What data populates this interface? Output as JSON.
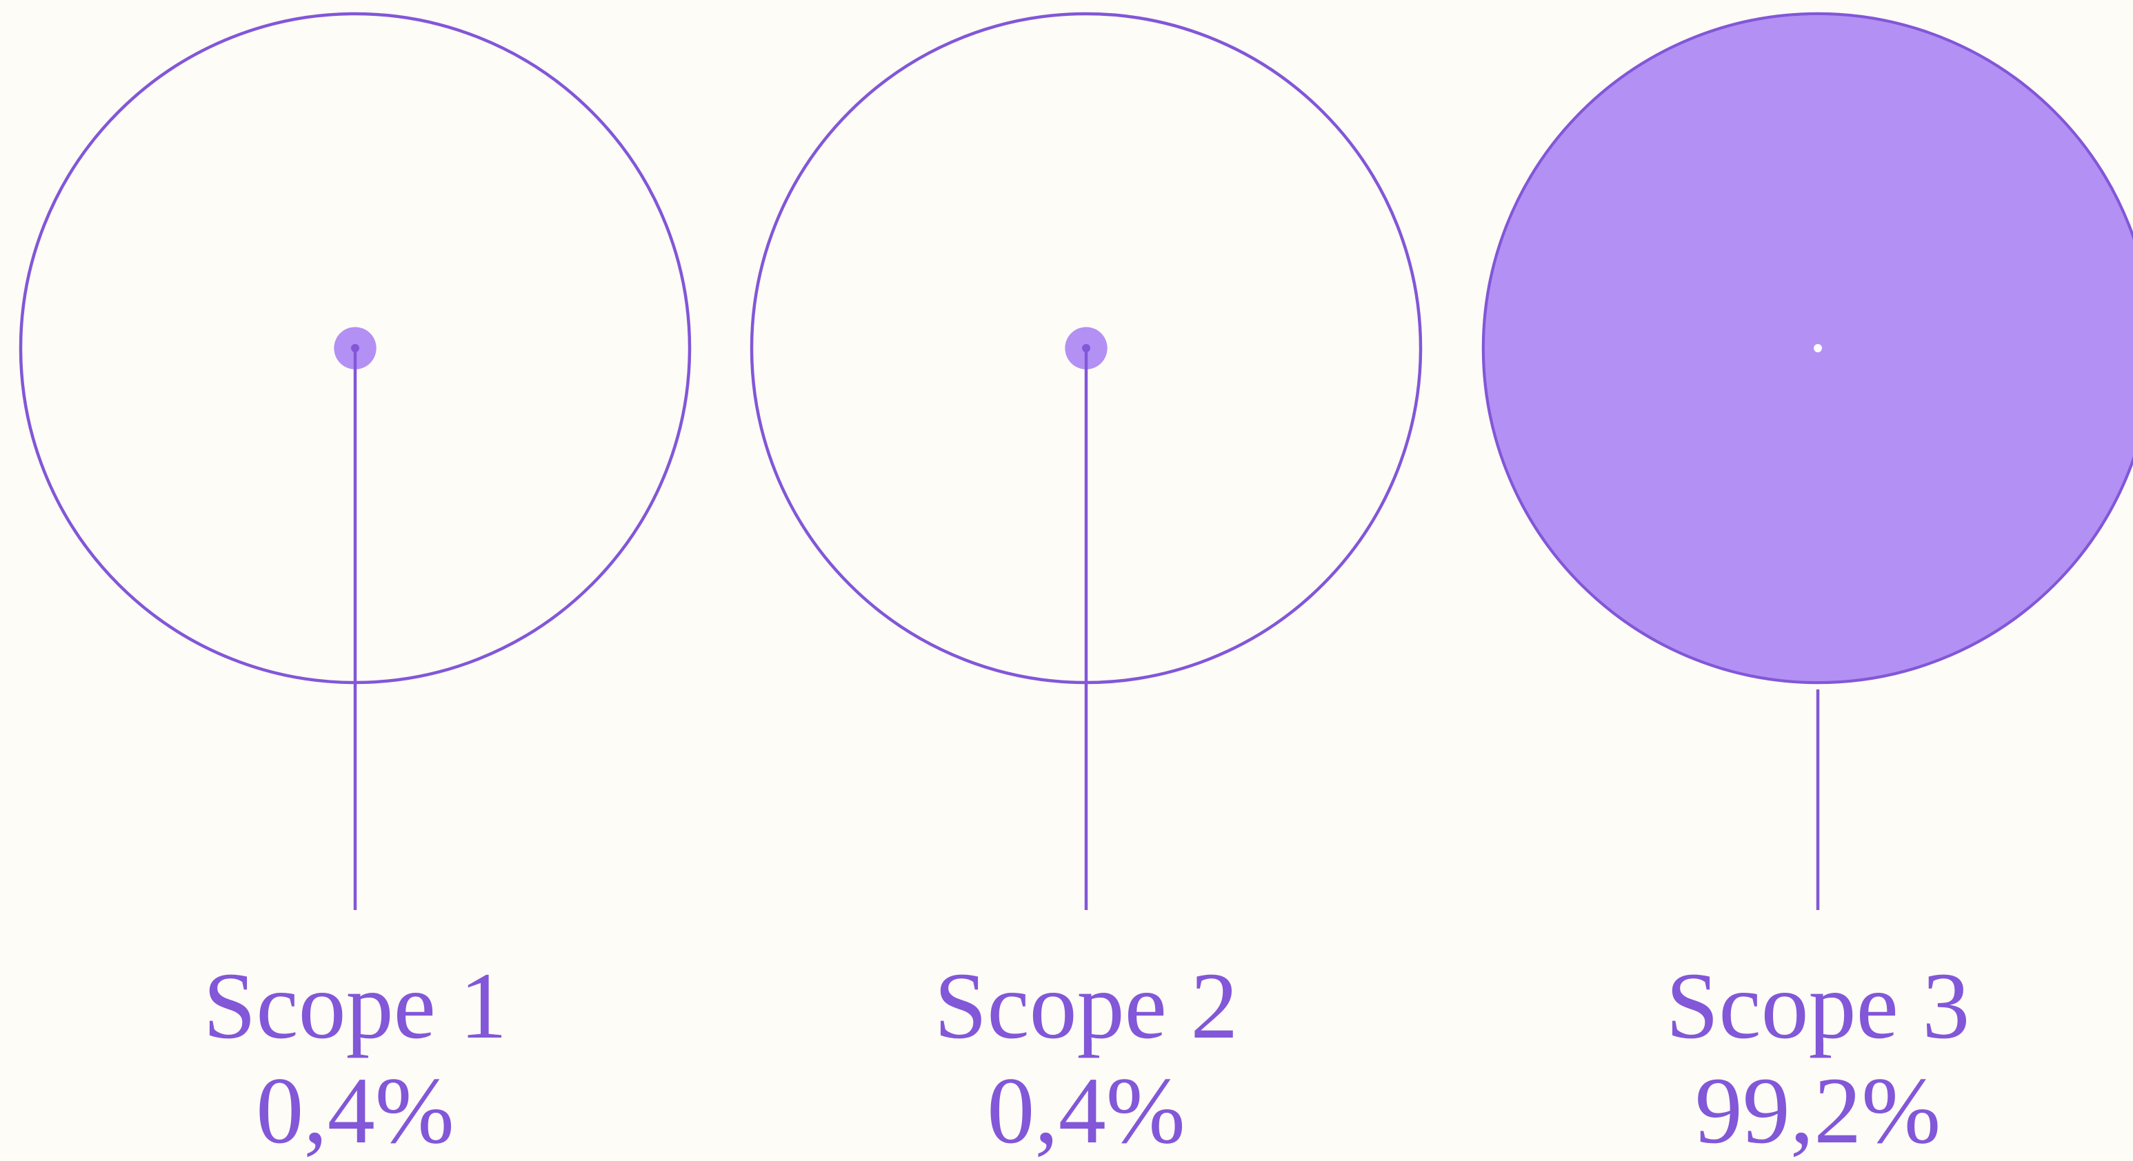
{
  "chart_data": {
    "type": "proportion",
    "categories": [
      "Scope 1",
      "Scope 2",
      "Scope 3"
    ],
    "values": [
      0.4,
      0.4,
      99.2
    ],
    "value_labels": [
      "0,4%",
      "0,4%",
      "99,2%"
    ],
    "color": "#b390f3",
    "stroke": "#8257d8"
  }
}
